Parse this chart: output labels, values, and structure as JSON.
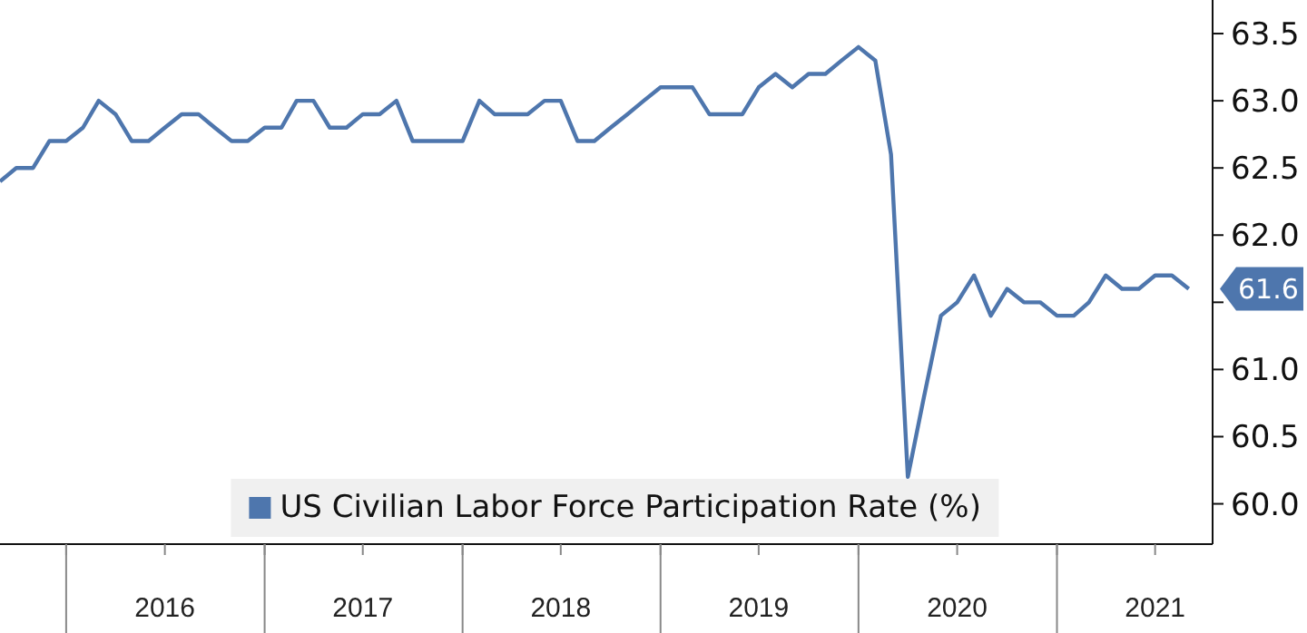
{
  "chart_data": {
    "type": "line",
    "x": [
      "2015-09",
      "2015-10",
      "2015-11",
      "2015-12",
      "2016-01",
      "2016-02",
      "2016-03",
      "2016-04",
      "2016-05",
      "2016-06",
      "2016-07",
      "2016-08",
      "2016-09",
      "2016-10",
      "2016-11",
      "2016-12",
      "2017-01",
      "2017-02",
      "2017-03",
      "2017-04",
      "2017-05",
      "2017-06",
      "2017-07",
      "2017-08",
      "2017-09",
      "2017-10",
      "2017-11",
      "2017-12",
      "2018-01",
      "2018-02",
      "2018-03",
      "2018-04",
      "2018-05",
      "2018-06",
      "2018-07",
      "2018-08",
      "2018-09",
      "2018-10",
      "2018-11",
      "2018-12",
      "2019-01",
      "2019-02",
      "2019-03",
      "2019-04",
      "2019-05",
      "2019-06",
      "2019-07",
      "2019-08",
      "2019-09",
      "2019-10",
      "2019-11",
      "2019-12",
      "2020-01",
      "2020-02",
      "2020-03",
      "2020-04",
      "2020-05",
      "2020-06",
      "2020-07",
      "2020-08",
      "2020-09",
      "2020-10",
      "2020-11",
      "2020-12",
      "2021-01",
      "2021-02",
      "2021-03",
      "2021-04",
      "2021-05",
      "2021-06",
      "2021-07",
      "2021-08",
      "2021-09"
    ],
    "series": [
      {
        "name": "US Civilian Labor Force Participation Rate (%)",
        "color": "#4e76ad",
        "values": [
          62.4,
          62.5,
          62.5,
          62.7,
          62.7,
          62.8,
          63.0,
          62.9,
          62.7,
          62.7,
          62.8,
          62.9,
          62.9,
          62.8,
          62.7,
          62.7,
          62.8,
          62.8,
          63.0,
          63.0,
          62.8,
          62.8,
          62.9,
          62.9,
          63.0,
          62.7,
          62.7,
          62.7,
          62.7,
          63.0,
          62.9,
          62.9,
          62.9,
          63.0,
          63.0,
          62.7,
          62.7,
          62.8,
          62.9,
          63.0,
          63.1,
          63.1,
          63.1,
          62.9,
          62.9,
          62.9,
          63.1,
          63.2,
          63.1,
          63.2,
          63.2,
          63.3,
          63.4,
          63.3,
          62.6,
          60.2,
          60.8,
          61.4,
          61.5,
          61.7,
          61.4,
          61.6,
          61.5,
          61.5,
          61.4,
          61.4,
          61.5,
          61.7,
          61.6,
          61.6,
          61.7,
          61.7,
          61.6
        ]
      }
    ],
    "xlim": [
      "2015-09",
      "2021-10-15"
    ],
    "xticks": [
      {
        "value": "2016-01",
        "label": null
      },
      {
        "value": "2016-07",
        "label": "2016"
      },
      {
        "value": "2017-01",
        "label": null
      },
      {
        "value": "2017-07",
        "label": "2017"
      },
      {
        "value": "2018-01",
        "label": null
      },
      {
        "value": "2018-07",
        "label": "2018"
      },
      {
        "value": "2019-01",
        "label": null
      },
      {
        "value": "2019-07",
        "label": "2019"
      },
      {
        "value": "2020-01",
        "label": null
      },
      {
        "value": "2020-07",
        "label": "2020"
      },
      {
        "value": "2021-01",
        "label": null
      },
      {
        "value": "2021-07",
        "label": "2021"
      }
    ],
    "ylim": [
      59.7,
      63.75
    ],
    "yticks": [
      {
        "value": 60,
        "label": "60.0"
      },
      {
        "value": 60.5,
        "label": "60.5"
      },
      {
        "value": 61,
        "label": "61.0"
      },
      {
        "value": 61.5,
        "label": null
      },
      {
        "value": 62,
        "label": "62.0"
      },
      {
        "value": 62.5,
        "label": "62.5"
      },
      {
        "value": 63,
        "label": "63.0"
      },
      {
        "value": 63.5,
        "label": "63.5"
      }
    ],
    "annotations": [
      {
        "text": "61.6",
        "x": "2021-09",
        "y": 61.6
      }
    ],
    "legend": "bottom",
    "grid": false,
    "marker": "none",
    "line_style": "solid"
  }
}
